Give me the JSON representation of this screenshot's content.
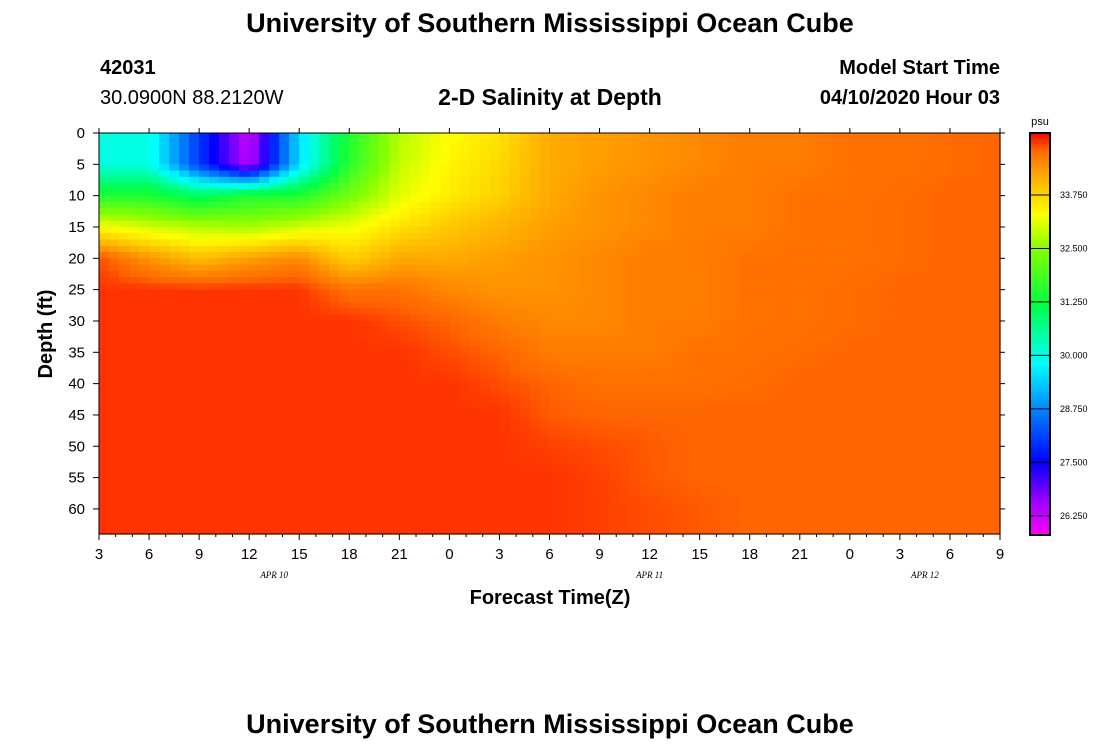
{
  "header": {
    "title": "University of Southern Mississippi Ocean Cube",
    "station_id": "42031",
    "location": "30.0900N 88.2120W",
    "subtitle": "2-D Salinity at Depth",
    "model_start_label": "Model Start Time",
    "model_start_time": "04/10/2020 Hour 03"
  },
  "footer": {
    "title": "University of Southern Mississippi Ocean Cube"
  },
  "chart_data": {
    "type": "heatmap",
    "title": "2-D Salinity at Depth",
    "xlabel": "Forecast Time(Z)",
    "ylabel": "Depth (ft)",
    "x_hours_range": [
      0,
      54
    ],
    "x_ticks": [
      "3",
      "6",
      "9",
      "12",
      "15",
      "18",
      "21",
      "0",
      "3",
      "6",
      "9",
      "12",
      "15",
      "18",
      "21",
      "0",
      "3",
      "6",
      "9"
    ],
    "date_labels": [
      {
        "label": "APR 10",
        "hour": 10.5
      },
      {
        "label": "APR 11",
        "hour": 33
      },
      {
        "label": "APR 12",
        "hour": 49.5
      }
    ],
    "y_ticks": [
      0,
      5,
      10,
      15,
      20,
      25,
      30,
      35,
      40,
      45,
      50,
      55,
      60
    ],
    "ylim": [
      0,
      64
    ],
    "colorbar": {
      "unit": "psu",
      "min": 25.8,
      "max": 35.2,
      "labels": [
        "33.750",
        "32.500",
        "31.250",
        "30.000",
        "28.750",
        "27.500",
        "26.250"
      ],
      "stops": [
        {
          "v": 25.8,
          "color": "#ff00ff"
        },
        {
          "v": 26.6,
          "color": "#9900ff"
        },
        {
          "v": 27.5,
          "color": "#0000ff"
        },
        {
          "v": 28.75,
          "color": "#0088ff"
        },
        {
          "v": 29.8,
          "color": "#00ffff"
        },
        {
          "v": 31.2,
          "color": "#00ff44"
        },
        {
          "v": 32.5,
          "color": "#88ff00"
        },
        {
          "v": 33.3,
          "color": "#ffff00"
        },
        {
          "v": 34.2,
          "color": "#ffaa00"
        },
        {
          "v": 34.8,
          "color": "#ff6600"
        },
        {
          "v": 35.2,
          "color": "#ff0000"
        }
      ]
    },
    "salinity_field": {
      "hours": [
        0,
        3,
        6,
        9,
        12,
        15,
        18,
        21,
        24,
        27,
        30,
        33,
        36,
        39,
        42,
        45,
        48,
        51,
        54
      ],
      "depths": [
        0,
        5,
        10,
        15,
        20,
        25,
        30,
        35,
        40,
        45,
        50,
        55,
        60,
        64
      ],
      "values_psu": [
        [
          30.0,
          30.0,
          28.0,
          26.2,
          29.5,
          31.5,
          32.8,
          33.3,
          33.6,
          34.2,
          34.3,
          34.4,
          34.5,
          34.6,
          34.6,
          34.7,
          34.7,
          34.75,
          34.8
        ],
        [
          30.0,
          30.0,
          28.0,
          26.3,
          29.5,
          31.6,
          32.9,
          33.4,
          33.7,
          34.2,
          34.3,
          34.4,
          34.5,
          34.6,
          34.6,
          34.7,
          34.7,
          34.75,
          34.8
        ],
        [
          31.5,
          31.5,
          31.0,
          31.5,
          31.5,
          32.3,
          33.1,
          33.5,
          33.8,
          34.2,
          34.4,
          34.5,
          34.6,
          34.6,
          34.7,
          34.7,
          34.75,
          34.8,
          34.8
        ],
        [
          33.3,
          33.0,
          32.8,
          32.7,
          33.0,
          33.2,
          33.6,
          33.9,
          34.1,
          34.3,
          34.4,
          34.5,
          34.6,
          34.6,
          34.7,
          34.7,
          34.75,
          34.8,
          34.8
        ],
        [
          34.9,
          34.4,
          34.0,
          34.3,
          34.5,
          33.8,
          34.2,
          34.2,
          34.3,
          34.4,
          34.5,
          34.6,
          34.6,
          34.7,
          34.7,
          34.7,
          34.75,
          34.8,
          34.8
        ],
        [
          35.0,
          35.0,
          35.0,
          35.0,
          35.0,
          34.7,
          34.7,
          34.5,
          34.4,
          34.4,
          34.5,
          34.6,
          34.6,
          34.7,
          34.7,
          34.75,
          34.8,
          34.8,
          34.8
        ],
        [
          35.0,
          35.0,
          35.0,
          35.0,
          35.0,
          35.0,
          34.9,
          34.8,
          34.6,
          34.5,
          34.5,
          34.6,
          34.6,
          34.7,
          34.7,
          34.75,
          34.8,
          34.8,
          34.8
        ],
        [
          35.0,
          35.0,
          35.0,
          35.0,
          35.0,
          35.0,
          35.0,
          34.9,
          34.8,
          34.6,
          34.6,
          34.6,
          34.7,
          34.7,
          34.75,
          34.8,
          34.8,
          34.8,
          34.8
        ],
        [
          35.0,
          35.0,
          35.0,
          35.0,
          35.0,
          35.0,
          35.0,
          35.0,
          34.9,
          34.8,
          34.7,
          34.7,
          34.7,
          34.75,
          34.8,
          34.8,
          34.8,
          34.8,
          34.8
        ],
        [
          35.0,
          35.0,
          35.0,
          35.0,
          35.0,
          35.0,
          35.0,
          35.0,
          35.0,
          34.85,
          34.8,
          34.8,
          34.8,
          34.8,
          34.8,
          34.8,
          34.8,
          34.8,
          34.8
        ],
        [
          35.0,
          35.0,
          35.0,
          35.0,
          35.0,
          35.0,
          35.0,
          35.0,
          35.0,
          34.95,
          34.9,
          34.85,
          34.8,
          34.8,
          34.8,
          34.8,
          34.8,
          34.8,
          34.8
        ],
        [
          35.0,
          35.0,
          35.0,
          35.0,
          35.0,
          35.0,
          35.0,
          35.0,
          35.0,
          35.0,
          34.95,
          34.85,
          34.8,
          34.8,
          34.8,
          34.8,
          34.8,
          34.8,
          34.8
        ],
        [
          35.0,
          35.0,
          35.0,
          35.0,
          35.0,
          35.0,
          35.0,
          35.0,
          35.0,
          35.0,
          34.95,
          34.9,
          34.85,
          34.8,
          34.8,
          34.8,
          34.8,
          34.8,
          34.8
        ],
        [
          35.0,
          35.0,
          35.0,
          35.0,
          35.0,
          35.0,
          35.0,
          35.0,
          35.0,
          35.0,
          34.95,
          34.9,
          34.85,
          34.8,
          34.8,
          34.8,
          34.8,
          34.8,
          34.8
        ]
      ]
    }
  }
}
